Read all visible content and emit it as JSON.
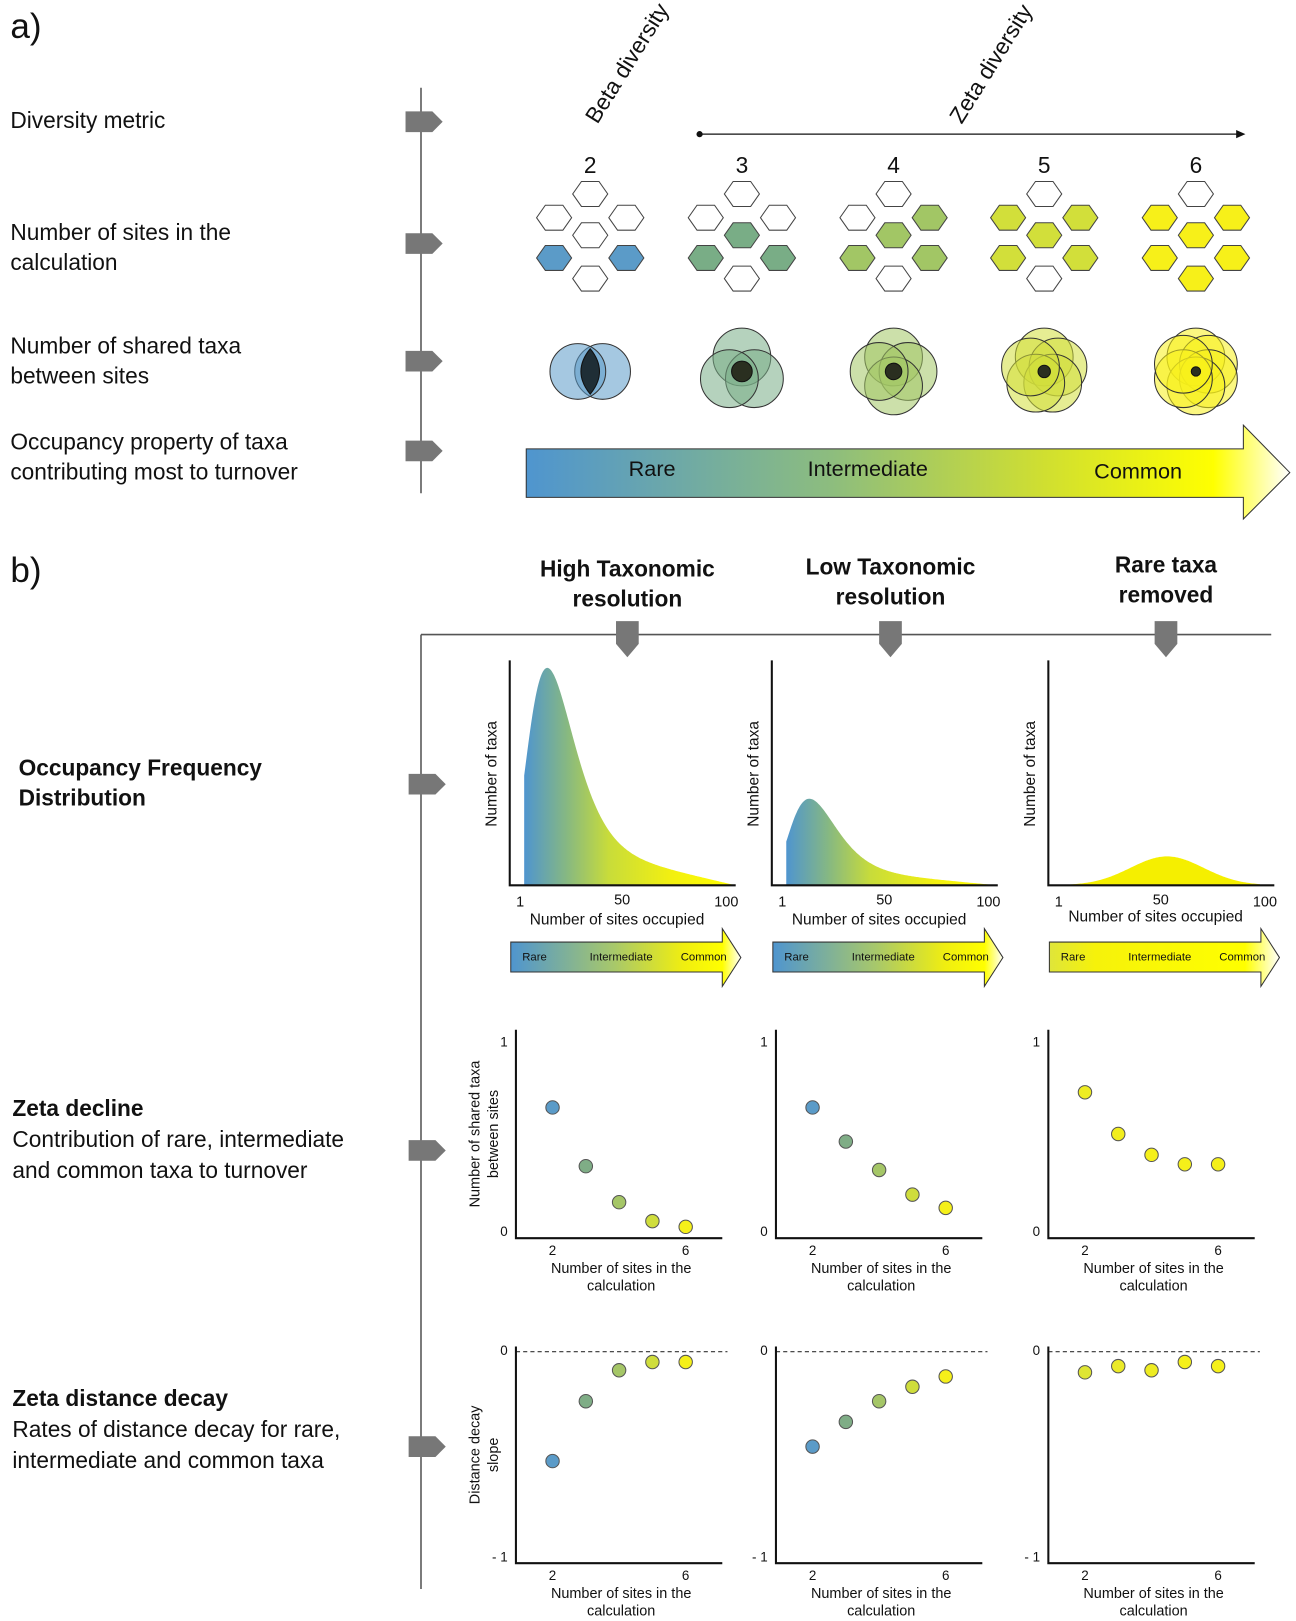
{
  "panel_a": {
    "label": "a)",
    "row_labels": [
      [
        "Diversity metric"
      ],
      [
        "Number of sites in the",
        "calculation"
      ],
      [
        "Number of shared taxa",
        "between sites"
      ],
      [
        "Occupancy property of taxa",
        "contributing most to turnover"
      ]
    ],
    "beta_label": "Beta diversity",
    "zeta_label": "Zeta diversity",
    "site_counts": [
      2,
      3,
      4,
      5,
      6
    ],
    "colors": [
      "#5b9bc8",
      "#79ad86",
      "#a2c665",
      "#d2df3a",
      "#f7f019"
    ],
    "gradient_labels": [
      "Rare",
      "Intermediate",
      "Common"
    ]
  },
  "panel_b": {
    "label": "b)",
    "columns": [
      [
        "High Taxonomic",
        "resolution"
      ],
      [
        "Low Taxonomic",
        "resolution"
      ],
      [
        "Rare taxa",
        "removed"
      ]
    ],
    "row_titles": [
      {
        "title": [
          "Occupancy Frequency",
          "Distribution"
        ]
      },
      {
        "title": [
          "Zeta decline"
        ],
        "subtitle": [
          "Contribution of rare, intermediate",
          "and common taxa to turnover"
        ]
      },
      {
        "title": [
          "Zeta distance decay"
        ],
        "subtitle": [
          "Rates of distance decay for rare,",
          "intermediate and common taxa"
        ]
      }
    ],
    "ofd": {
      "ylabel": "Number of taxa",
      "xlabel": "Number of sites occupied",
      "xlim": [
        -4,
        104.5
      ],
      "xticks": [
        1,
        50,
        100
      ],
      "gradient_labels": [
        "Rare",
        "Intermediate",
        "Common"
      ]
    },
    "zeta_decline": {
      "ylabel": [
        "Number of shared taxa",
        "between sites"
      ],
      "xlabel": [
        "Number of sites in the",
        "calculation"
      ],
      "xlim": [
        0.9,
        7.1
      ],
      "xticks": [
        2,
        6
      ],
      "ylim": [
        -0.03,
        1.07
      ],
      "yticks": [
        0,
        1
      ],
      "x": [
        2,
        3,
        4,
        5,
        6
      ],
      "series": [
        {
          "colors": [
            "#5b9bc8",
            "#7fad86",
            "#a5c667",
            "#cfdd3c",
            "#f5f01a"
          ],
          "values": [
            0.66,
            0.35,
            0.16,
            0.06,
            0.03
          ]
        },
        {
          "colors": [
            "#5b9bc8",
            "#7fad86",
            "#a5c667",
            "#cfdd3c",
            "#f5f01a"
          ],
          "values": [
            0.66,
            0.48,
            0.33,
            0.2,
            0.13
          ]
        },
        {
          "colors": [
            "#eeec22",
            "#f2ee1e",
            "#f5f01a",
            "#f5f01a",
            "#f5f01a"
          ],
          "values": [
            0.74,
            0.52,
            0.41,
            0.36,
            0.36
          ]
        }
      ]
    },
    "distance_decay": {
      "ylabel": [
        "Distance decay",
        "slope"
      ],
      "xlabel": [
        "Number of sites in the",
        "calculation"
      ],
      "xlim": [
        0.9,
        7.1
      ],
      "xticks": [
        2,
        6
      ],
      "ylim": [
        -1.025,
        0.025
      ],
      "yticks": [
        0,
        {
          "value": -1,
          "label": "- 1"
        }
      ],
      "zero_line": true,
      "x": [
        2,
        3,
        4,
        5,
        6
      ],
      "series": [
        {
          "colors": [
            "#5b9bc8",
            "#7fad86",
            "#a5c667",
            "#cfdd3c",
            "#f5f01a"
          ],
          "values": [
            -0.53,
            -0.24,
            -0.09,
            -0.05,
            -0.05
          ]
        },
        {
          "colors": [
            "#5b9bc8",
            "#7fad86",
            "#a5c667",
            "#cfdd3c",
            "#f5f01a"
          ],
          "values": [
            -0.46,
            -0.34,
            -0.24,
            -0.17,
            -0.12
          ]
        },
        {
          "colors": [
            "#dfe533",
            "#ebea28",
            "#eeec22",
            "#f5f01a",
            "#f5f01a"
          ],
          "values": [
            -0.1,
            -0.07,
            -0.09,
            -0.05,
            -0.07
          ]
        }
      ]
    }
  }
}
